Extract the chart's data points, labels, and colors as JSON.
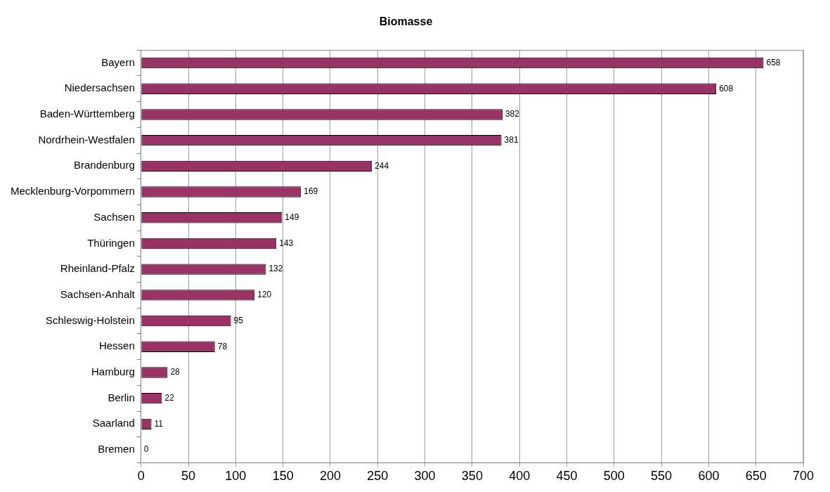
{
  "chart_data": {
    "type": "bar",
    "orientation": "horizontal",
    "title": "Biomasse",
    "categories": [
      "Bayern",
      "Niedersachsen",
      "Baden-Württemberg",
      "Nordrhein-Westfalen",
      "Brandenburg",
      "Mecklenburg-Vorpommern",
      "Sachsen",
      "Thüringen",
      "Rheinland-Pfalz",
      "Sachsen-Anhalt",
      "Schleswig-Holstein",
      "Hessen",
      "Hamburg",
      "Berlin",
      "Saarland",
      "Bremen"
    ],
    "values": [
      658,
      608,
      382,
      381,
      244,
      169,
      149,
      143,
      132,
      120,
      95,
      78,
      28,
      22,
      11,
      0
    ],
    "color": "#993366",
    "xlim": [
      0,
      700
    ],
    "xticks": [
      0,
      50,
      100,
      150,
      200,
      250,
      300,
      350,
      400,
      450,
      500,
      550,
      600,
      650,
      700
    ],
    "grid": "x",
    "data_labels": true,
    "legend": false
  }
}
